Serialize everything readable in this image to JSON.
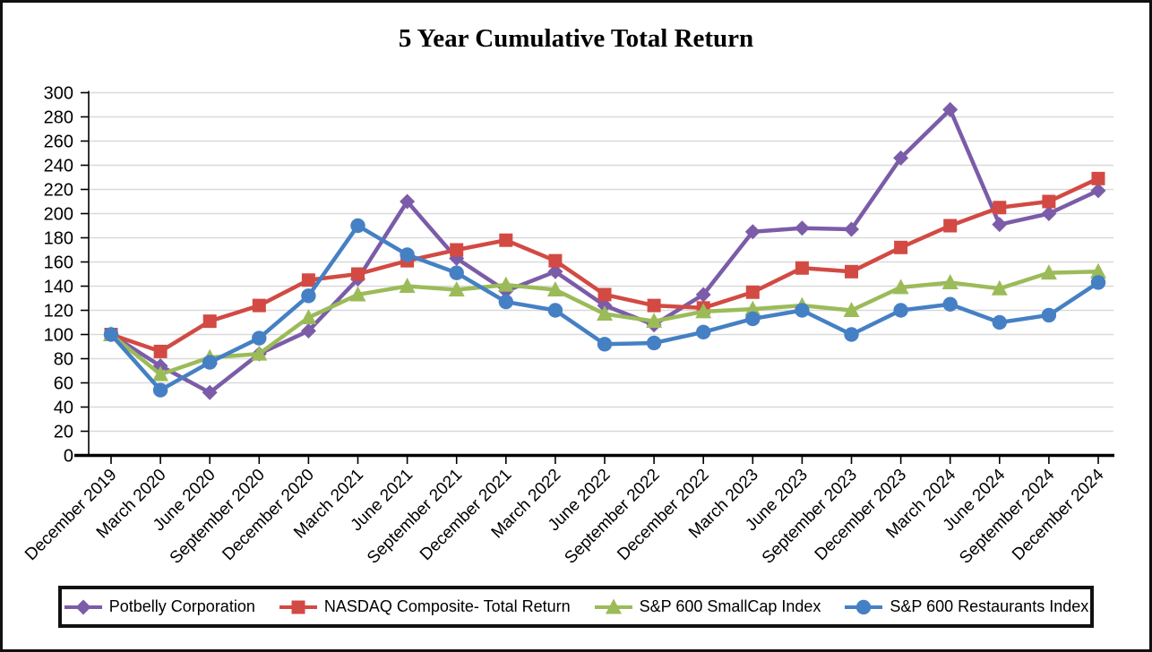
{
  "chart_data": {
    "type": "line",
    "title": "5 Year Cumulative Total Return",
    "legend_position": "bottom",
    "grid": "horizontal",
    "gridline_color": "#D9D9D9",
    "axis_color": "#000000",
    "ylim": [
      0,
      300
    ],
    "yticks": [
      0,
      20,
      40,
      60,
      80,
      100,
      120,
      140,
      160,
      180,
      200,
      220,
      240,
      260,
      280,
      300
    ],
    "x_labels": [
      "December 2019",
      "March 2020",
      "June 2020",
      "September 2020",
      "December 2020",
      "March 2021",
      "June 2021",
      "September 2021",
      "December 2021",
      "March 2022",
      "June 2022",
      "September 2022",
      "December 2022",
      "March 2023",
      "June 2023",
      "September 2023",
      "December 2023",
      "March 2024",
      "June 2024",
      "September 2024",
      "December 2024"
    ],
    "series": [
      {
        "name": "Potbelly Corporation",
        "marker": "diamond",
        "color": "#7B5CA8",
        "values": [
          100,
          74,
          52,
          84,
          103,
          146,
          210,
          163,
          136,
          152,
          124,
          108,
          133,
          185,
          188,
          187,
          246,
          286,
          191,
          200,
          219
        ]
      },
      {
        "name": "NASDAQ Composite- Total Return",
        "marker": "square",
        "color": "#D24A43",
        "values": [
          100,
          86,
          111,
          124,
          145,
          150,
          161,
          170,
          178,
          161,
          133,
          124,
          122,
          135,
          155,
          152,
          172,
          190,
          205,
          210,
          229
        ]
      },
      {
        "name": "S&P 600 SmallCap Index",
        "marker": "triangle",
        "color": "#9BBB59",
        "values": [
          100,
          67,
          81,
          84,
          114,
          133,
          140,
          137,
          141,
          137,
          117,
          111,
          119,
          121,
          124,
          120,
          139,
          143,
          138,
          151,
          152
        ]
      },
      {
        "name": "S&P 600 Restaurants Index",
        "marker": "circle",
        "color": "#4580C4",
        "values": [
          100,
          54,
          77,
          97,
          132,
          190,
          166,
          151,
          127,
          120,
          92,
          93,
          102,
          113,
          120,
          100,
          120,
          125,
          110,
          116,
          143
        ]
      }
    ]
  }
}
